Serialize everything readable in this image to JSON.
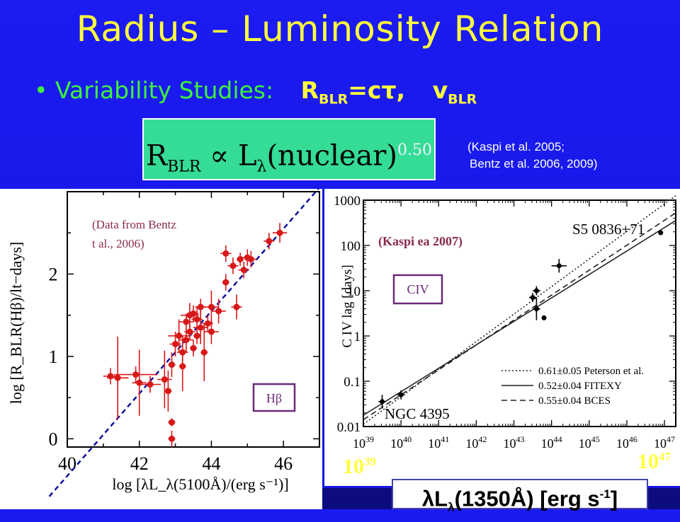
{
  "title": "Radius – Luminosity Relation",
  "bullet": {
    "marker": "•",
    "text": "Variability Studies:",
    "eq1_main": "R",
    "eq1_sub": "BLR",
    "eq1_rest": "=cτ,",
    "eq2_main": "v",
    "eq2_sub": "BLR"
  },
  "formula": {
    "main": "R",
    "sub": "BLR",
    "prop": " ∝ L",
    "lambda": "λ",
    "rest": "(nuclear)",
    "exp": "0.50"
  },
  "refs": {
    "line1": "(Kaspi et al. 2005;",
    "line2": "Bentz et al. 2006, 2009)"
  },
  "lower_axis": {
    "left_base": "10",
    "left_exp": "39",
    "right_base": "10",
    "right_exp": "47",
    "lum_lambda": "λL",
    "lum_sub": "λ",
    "lum_rest": "(1350Å) [erg s",
    "lum_exp": "-1",
    "lum_close": "]"
  },
  "chart_data": [
    {
      "type": "scatter",
      "ylabel": "log [R_BLR(Hβ)/lt−days]",
      "xlabel": "log [λL_λ(5100Å)/(erg s⁻¹)]",
      "xlim": [
        40,
        47
      ],
      "ylim": [
        -0.1,
        3.0
      ],
      "x_ticks": [
        "40",
        "42",
        "44",
        "46"
      ],
      "y_ticks": [
        "0",
        "1",
        "2"
      ],
      "annotation": "(Data from Bentz et al., 2006)",
      "label_box": "Hβ",
      "fit_line": {
        "slope": 0.5,
        "intercept": -20.45,
        "style": "dashed",
        "color": "#1010a0"
      },
      "point_color": "#d81818",
      "points": [
        {
          "x": 41.2,
          "y": 0.76,
          "ex": 0.2,
          "ey": 0.1
        },
        {
          "x": 41.4,
          "y": 0.74,
          "ex": 0.3,
          "ey": 0.5
        },
        {
          "x": 41.9,
          "y": 0.78,
          "ex": 0.6,
          "ey": 0.1
        },
        {
          "x": 42.0,
          "y": 0.68,
          "ex": 0.2,
          "ey": 0.4
        },
        {
          "x": 42.3,
          "y": 0.66,
          "ex": 0.3,
          "ey": 0.1
        },
        {
          "x": 42.7,
          "y": 0.72,
          "ex": 0.2,
          "ey": 0.35
        },
        {
          "x": 42.8,
          "y": 0.58,
          "ex": 0.1,
          "ey": 0.25
        },
        {
          "x": 42.9,
          "y": 0.2,
          "ex": 0.1,
          "ey": 0.05
        },
        {
          "x": 42.9,
          "y": 0.0,
          "ex": 0.1,
          "ey": 0.1
        },
        {
          "x": 42.9,
          "y": 0.9,
          "ex": 0.1,
          "ey": 0.15
        },
        {
          "x": 43.0,
          "y": 1.15,
          "ex": 0.15,
          "ey": 0.15
        },
        {
          "x": 43.1,
          "y": 1.25,
          "ex": 0.3,
          "ey": 0.2
        },
        {
          "x": 43.2,
          "y": 1.05,
          "ex": 0.15,
          "ey": 0.2
        },
        {
          "x": 43.2,
          "y": 0.88,
          "ex": 0.1,
          "ey": 0.3
        },
        {
          "x": 43.3,
          "y": 1.42,
          "ex": 0.2,
          "ey": 0.1
        },
        {
          "x": 43.3,
          "y": 1.2,
          "ex": 0.2,
          "ey": 0.15
        },
        {
          "x": 43.4,
          "y": 1.5,
          "ex": 0.25,
          "ey": 0.15
        },
        {
          "x": 43.4,
          "y": 1.3,
          "ex": 0.15,
          "ey": 0.1
        },
        {
          "x": 43.5,
          "y": 1.52,
          "ex": 0.15,
          "ey": 0.1
        },
        {
          "x": 43.5,
          "y": 1.1,
          "ex": 0.1,
          "ey": 0.1
        },
        {
          "x": 43.6,
          "y": 1.45,
          "ex": 0.15,
          "ey": 0.15
        },
        {
          "x": 43.6,
          "y": 1.25,
          "ex": 0.1,
          "ey": 0.1
        },
        {
          "x": 43.7,
          "y": 1.35,
          "ex": 0.2,
          "ey": 0.2
        },
        {
          "x": 43.7,
          "y": 1.6,
          "ex": 0.15,
          "ey": 0.1
        },
        {
          "x": 43.8,
          "y": 1.05,
          "ex": 0.1,
          "ey": 0.35
        },
        {
          "x": 43.9,
          "y": 1.4,
          "ex": 0.15,
          "ey": 0.1
        },
        {
          "x": 44.0,
          "y": 1.3,
          "ex": 0.2,
          "ey": 0.15
        },
        {
          "x": 44.0,
          "y": 1.6,
          "ex": 0.2,
          "ey": 0.2
        },
        {
          "x": 44.2,
          "y": 1.55,
          "ex": 0.2,
          "ey": 0.15
        },
        {
          "x": 44.4,
          "y": 1.9,
          "ex": 0.1,
          "ey": 0.1
        },
        {
          "x": 44.4,
          "y": 2.25,
          "ex": 0.15,
          "ey": 0.1
        },
        {
          "x": 44.6,
          "y": 2.1,
          "ex": 0.15,
          "ey": 0.1
        },
        {
          "x": 44.7,
          "y": 1.6,
          "ex": 0.15,
          "ey": 0.15
        },
        {
          "x": 44.8,
          "y": 2.18,
          "ex": 0.1,
          "ey": 0.08
        },
        {
          "x": 44.9,
          "y": 2.05,
          "ex": 0.15,
          "ey": 0.1
        },
        {
          "x": 45.0,
          "y": 2.2,
          "ex": 0.15,
          "ey": 0.1
        },
        {
          "x": 45.1,
          "y": 2.18,
          "ex": 0.15,
          "ey": 0.1
        },
        {
          "x": 45.6,
          "y": 2.4,
          "ex": 0.15,
          "ey": 0.1
        },
        {
          "x": 45.9,
          "y": 2.5,
          "ex": 0.2,
          "ey": 0.12
        }
      ]
    },
    {
      "type": "scatter",
      "ylabel": "C IV lag [days]",
      "xlim": [
        39,
        47.3
      ],
      "ylim_log": [
        -2,
        3
      ],
      "y_ticks": [
        "0.01",
        "0.1",
        "1",
        "10",
        "100",
        "1000"
      ],
      "x_ticks": [
        {
          "base": "10",
          "exp": "39"
        },
        {
          "base": "10",
          "exp": "40"
        },
        {
          "base": "10",
          "exp": "41"
        },
        {
          "base": "10",
          "exp": "42"
        },
        {
          "base": "10",
          "exp": "43"
        },
        {
          "base": "10",
          "exp": "44"
        },
        {
          "base": "10",
          "exp": "45"
        },
        {
          "base": "10",
          "exp": "46"
        },
        {
          "base": "10",
          "exp": "47"
        }
      ],
      "annotation": "(Kaspi ea 2007)",
      "label_box": "CIV",
      "object_labels": [
        "S5 0836+71",
        "NGC 4395"
      ],
      "legend": [
        {
          "label": "0.61±0.05 Peterson et al.",
          "style": "dotted"
        },
        {
          "label": "0.52±0.04 FITEXY",
          "style": "solid"
        },
        {
          "label": "0.55±0.04 BCES",
          "style": "dashed"
        }
      ],
      "legend_position": "bottom-right",
      "lines": [
        {
          "style": "dotted",
          "slope": 0.61,
          "x0": 39,
          "y0": -1.95,
          "x1": 47.3,
          "y1": 3.1
        },
        {
          "style": "solid",
          "slope": 0.52,
          "x0": 39,
          "y0": -1.75,
          "x1": 47.3,
          "y1": 2.55
        },
        {
          "style": "dashed",
          "slope": 0.55,
          "x0": 39,
          "y0": -1.85,
          "x1": 47.3,
          "y1": 2.72
        }
      ],
      "points": [
        {
          "x": 39.5,
          "y": -1.45,
          "ex": 0.1,
          "ey": 0.15
        },
        {
          "x": 40.0,
          "y": -1.3,
          "ex": 0.1,
          "ey": 0.1
        },
        {
          "x": 43.6,
          "y": 0.6,
          "ex": 0.1,
          "ey": 0.25
        },
        {
          "x": 43.5,
          "y": 0.85,
          "ex": 0.1,
          "ey": 0.1
        },
        {
          "x": 43.6,
          "y": 1.0,
          "ex": 0.1,
          "ey": 0.1
        },
        {
          "x": 43.8,
          "y": 0.4,
          "ex": 0.0,
          "ey": 0.0
        },
        {
          "x": 44.2,
          "y": 1.55,
          "ex": 0.2,
          "ey": 0.15
        },
        {
          "x": 46.9,
          "y": 2.28,
          "ex": 0.0,
          "ey": 0.0
        }
      ]
    }
  ]
}
